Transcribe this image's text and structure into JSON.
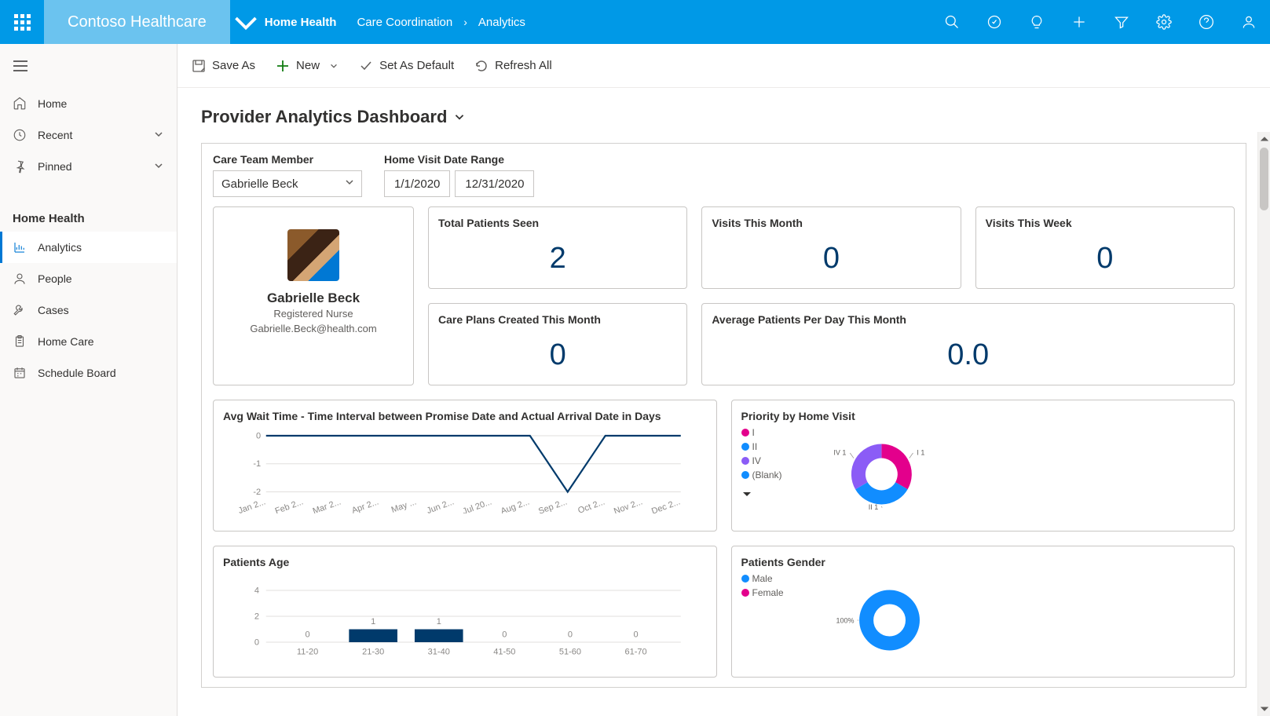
{
  "topbar": {
    "app_name": "Contoso Healthcare",
    "nav_area": "Home Health",
    "breadcrumb1": "Care Coordination",
    "breadcrumb2": "Analytics",
    "bg_color": "#0099e7",
    "chip_color": "#6bc3ef"
  },
  "sidebar": {
    "items_top": [
      {
        "label": "Home",
        "icon": "home"
      },
      {
        "label": "Recent",
        "icon": "clock",
        "chevron": true
      },
      {
        "label": "Pinned",
        "icon": "pin",
        "chevron": true
      }
    ],
    "section_title": "Home Health",
    "items_section": [
      {
        "label": "Analytics",
        "icon": "analytics",
        "active": true
      },
      {
        "label": "People",
        "icon": "person"
      },
      {
        "label": "Cases",
        "icon": "wrench"
      },
      {
        "label": "Home Care",
        "icon": "clipboard"
      },
      {
        "label": "Schedule Board",
        "icon": "schedule"
      }
    ]
  },
  "cmdbar": {
    "save_as": "Save As",
    "new": "New",
    "set_default": "Set As Default",
    "refresh": "Refresh All"
  },
  "dashboard": {
    "title": "Provider Analytics Dashboard",
    "filter_member_label": "Care Team Member",
    "filter_member_value": "Gabrielle Beck",
    "filter_date_label": "Home Visit Date Range",
    "date_from": "1/1/2020",
    "date_to": "12/31/2020",
    "profile": {
      "name": "Gabrielle Beck",
      "role": "Registered Nurse",
      "email": "Gabrielle.Beck@health.com"
    },
    "metrics": {
      "total_patients": {
        "title": "Total Patients Seen",
        "value": "2"
      },
      "visits_month": {
        "title": "Visits This Month",
        "value": "0"
      },
      "visits_week": {
        "title": "Visits This Week",
        "value": "0"
      },
      "care_plans": {
        "title": "Care Plans Created This Month",
        "value": "0"
      },
      "avg_patients": {
        "title": "Average Patients Per Day This Month",
        "value": "0.0"
      }
    },
    "wait_chart": {
      "title": "Avg Wait Time - Time Interval between Promise Date and Actual Arrival Date in Days",
      "type": "line",
      "x_labels": [
        "Jan 2...",
        "Feb 2...",
        "Mar 2...",
        "Apr 2...",
        "May ...",
        "Jun 2...",
        "Jul 20...",
        "Aug 2...",
        "Sep 2...",
        "Oct 2...",
        "Nov 2...",
        "Dec 2..."
      ],
      "y_ticks": [
        0,
        -1,
        -2
      ],
      "values": [
        0,
        0,
        0,
        0,
        0,
        0,
        0,
        0,
        -2,
        0,
        0,
        0
      ],
      "line_color": "#003a6b",
      "grid_color": "#e1dfdd"
    },
    "priority_chart": {
      "title": "Priority by Home Visit",
      "type": "donut",
      "legend": [
        {
          "label": "I",
          "color": "#e3008c"
        },
        {
          "label": "II",
          "color": "#118dff"
        },
        {
          "label": "IV",
          "color": "#8b5cf6"
        },
        {
          "label": "(Blank)",
          "color": "#118dff"
        }
      ],
      "slices": [
        {
          "label": "I 1",
          "value": 1,
          "color": "#e3008c"
        },
        {
          "label": "II 1",
          "value": 1,
          "color": "#118dff"
        },
        {
          "label": "IV 1",
          "value": 1,
          "color": "#8b5cf6"
        }
      ]
    },
    "age_chart": {
      "title": "Patients Age",
      "type": "bar",
      "categories": [
        "11-20",
        "21-30",
        "31-40",
        "41-50",
        "51-60",
        "61-70"
      ],
      "values": [
        0,
        1,
        1,
        0,
        0,
        0
      ],
      "y_ticks": [
        0,
        2,
        4
      ],
      "bar_color": "#003a6b"
    },
    "gender_chart": {
      "title": "Patients Gender",
      "type": "donut",
      "legend": [
        {
          "label": "Male",
          "color": "#118dff"
        },
        {
          "label": "Female",
          "color": "#e3008c"
        }
      ],
      "center_label": "100%",
      "slices": [
        {
          "label": "Male",
          "value": 100,
          "color": "#118dff"
        }
      ]
    }
  }
}
